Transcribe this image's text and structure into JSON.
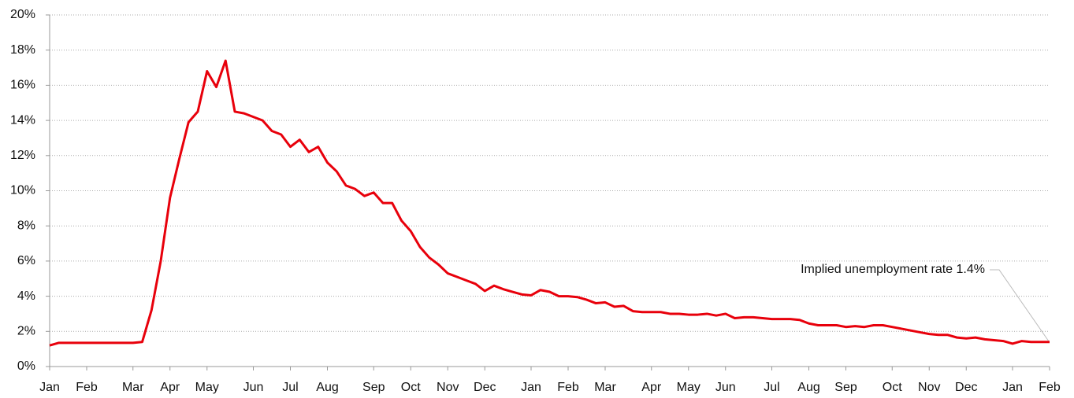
{
  "chart_data": {
    "type": "line",
    "annotation": "Implied unemployment rate 1.4%",
    "categories": [
      "Jan",
      null,
      null,
      null,
      "Feb",
      null,
      null,
      null,
      null,
      "Mar",
      null,
      null,
      null,
      "Apr",
      null,
      null,
      null,
      "May",
      null,
      null,
      null,
      null,
      "Jun",
      null,
      null,
      null,
      "Jul",
      null,
      null,
      null,
      "Aug",
      null,
      null,
      null,
      null,
      "Sep",
      null,
      null,
      null,
      "Oct",
      null,
      null,
      null,
      "Nov",
      null,
      null,
      null,
      "Dec",
      null,
      null,
      null,
      null,
      "Jan",
      null,
      null,
      null,
      "Feb",
      null,
      null,
      null,
      "Mar",
      null,
      null,
      null,
      null,
      "Apr",
      null,
      null,
      null,
      "May",
      null,
      null,
      null,
      "Jun",
      null,
      null,
      null,
      null,
      "Jul",
      null,
      null,
      null,
      "Aug",
      null,
      null,
      null,
      "Sep",
      null,
      null,
      null,
      null,
      "Oct",
      null,
      null,
      null,
      "Nov",
      null,
      null,
      null,
      "Dec",
      null,
      null,
      null,
      null,
      "Jan",
      null,
      null,
      null,
      "Feb"
    ],
    "series": [
      {
        "color": "#e8000b",
        "values": [
          1.2,
          1.35,
          1.35,
          1.35,
          1.35,
          1.35,
          1.35,
          1.35,
          1.35,
          1.35,
          1.4,
          3.2,
          6.0,
          9.6,
          11.8,
          13.9,
          14.5,
          16.8,
          15.9,
          17.4,
          14.5,
          14.4,
          14.2,
          14.0,
          13.4,
          13.2,
          12.5,
          12.9,
          12.2,
          12.5,
          11.6,
          11.1,
          10.3,
          10.1,
          9.7,
          9.9,
          9.3,
          9.3,
          8.3,
          7.7,
          6.8,
          6.2,
          5.8,
          5.3,
          5.1,
          4.9,
          4.7,
          4.3,
          4.6,
          4.4,
          4.25,
          4.1,
          4.05,
          4.35,
          4.25,
          4.0,
          4.0,
          3.95,
          3.8,
          3.6,
          3.65,
          3.4,
          3.45,
          3.15,
          3.1,
          3.1,
          3.1,
          3.0,
          3.0,
          2.95,
          2.95,
          3.0,
          2.9,
          3.0,
          2.75,
          2.8,
          2.8,
          2.75,
          2.7,
          2.7,
          2.7,
          2.65,
          2.45,
          2.35,
          2.35,
          2.35,
          2.25,
          2.3,
          2.25,
          2.35,
          2.35,
          2.25,
          2.15,
          2.05,
          1.95,
          1.85,
          1.8,
          1.8,
          1.65,
          1.6,
          1.65,
          1.55,
          1.5,
          1.45,
          1.3,
          1.45,
          1.4,
          1.4,
          1.4
        ]
      }
    ],
    "ylim": [
      0,
      20
    ],
    "yticks": [
      {
        "value": 0,
        "label": "0%"
      },
      {
        "value": 2,
        "label": "2%"
      },
      {
        "value": 4,
        "label": "4%"
      },
      {
        "value": 6,
        "label": "6%"
      },
      {
        "value": 8,
        "label": "8%"
      },
      {
        "value": 10,
        "label": "10%"
      },
      {
        "value": 12,
        "label": "12%"
      },
      {
        "value": 14,
        "label": "14%"
      },
      {
        "value": 16,
        "label": "16%"
      },
      {
        "value": 18,
        "label": "18%"
      },
      {
        "value": 20,
        "label": "20%"
      }
    ],
    "grid": true
  }
}
